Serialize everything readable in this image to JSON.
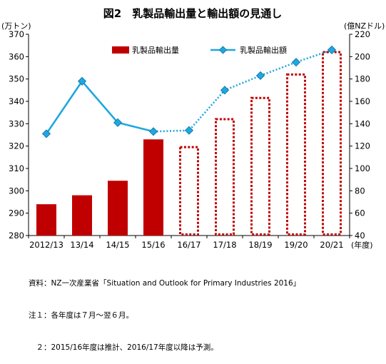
{
  "chart_data": {
    "type": "bar+line",
    "title": "図2　乳製品輸出量と輸出額の見通し",
    "y_left_label": "(万トン)",
    "y_right_label": "(億NZドル)",
    "x_unit_label": "(年度)",
    "categories": [
      "2012/13",
      "13/14",
      "14/15",
      "15/16",
      "16/17",
      "17/18",
      "18/19",
      "19/20",
      "20/21"
    ],
    "ylim_left": [
      280,
      370
    ],
    "yticks_left": [
      280,
      290,
      300,
      310,
      320,
      330,
      340,
      350,
      360,
      370
    ],
    "ylim_right": [
      40,
      220
    ],
    "yticks_right": [
      40,
      60,
      80,
      100,
      120,
      140,
      160,
      180,
      200,
      220
    ],
    "series": [
      {
        "name": "乳製品輸出量",
        "type": "bar",
        "axis": "left",
        "color": "#c00000",
        "values": [
          294,
          298,
          304.5,
          323,
          320,
          332.5,
          342,
          352.5,
          362.5
        ],
        "forecast_from_index": 4
      },
      {
        "name": "乳製品輸出額",
        "type": "line",
        "axis": "right",
        "color": "#1fa7e0",
        "marker": "diamond",
        "values": [
          131,
          178,
          141,
          133,
          134,
          170,
          183,
          195,
          206
        ],
        "forecast_from_index": 4
      }
    ],
    "legend_position": "top"
  },
  "notes": {
    "source": "資料：NZ一次産業省「Situation and Outlook for Primary Industries 2016」",
    "note1": "注１：各年度は７月～翌６月。",
    "note2": "　２：2015/16年度は推計、2016/17年度以降は予測。"
  }
}
